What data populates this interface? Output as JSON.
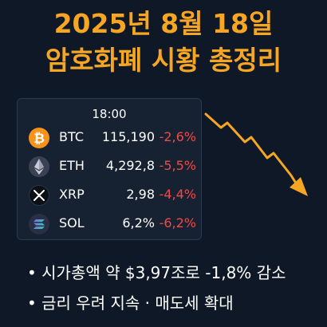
{
  "title": {
    "line1": "2025년 8월 18일",
    "line2": "암호화폐 시황 총정리"
  },
  "ticker": {
    "time": "18:00",
    "coins": [
      {
        "symbol": "BTC",
        "price": "115,190",
        "change": "-2,6%",
        "icon": "bitcoin-icon"
      },
      {
        "symbol": "ETH",
        "price": "4,292,8",
        "change": "-5,5%",
        "icon": "ethereum-icon"
      },
      {
        "symbol": "XRP",
        "price": "2,98",
        "change": "-4,4%",
        "icon": "xrp-icon"
      },
      {
        "symbol": "SOL",
        "price": "6,2%",
        "change": "-6,2%",
        "icon": "solana-icon"
      }
    ]
  },
  "trend": {
    "direction": "down",
    "color": "#f6a623",
    "icon": "down-trend-arrow-icon"
  },
  "bullets": [
    "• 시가총액 약 $3,97조로 -1,8% 감소",
    "• 금리 우려 지속 · 매도세 확대"
  ],
  "colors": {
    "accent": "#f6a623",
    "negative": "#ef4a4a",
    "background": "#0f1826"
  }
}
